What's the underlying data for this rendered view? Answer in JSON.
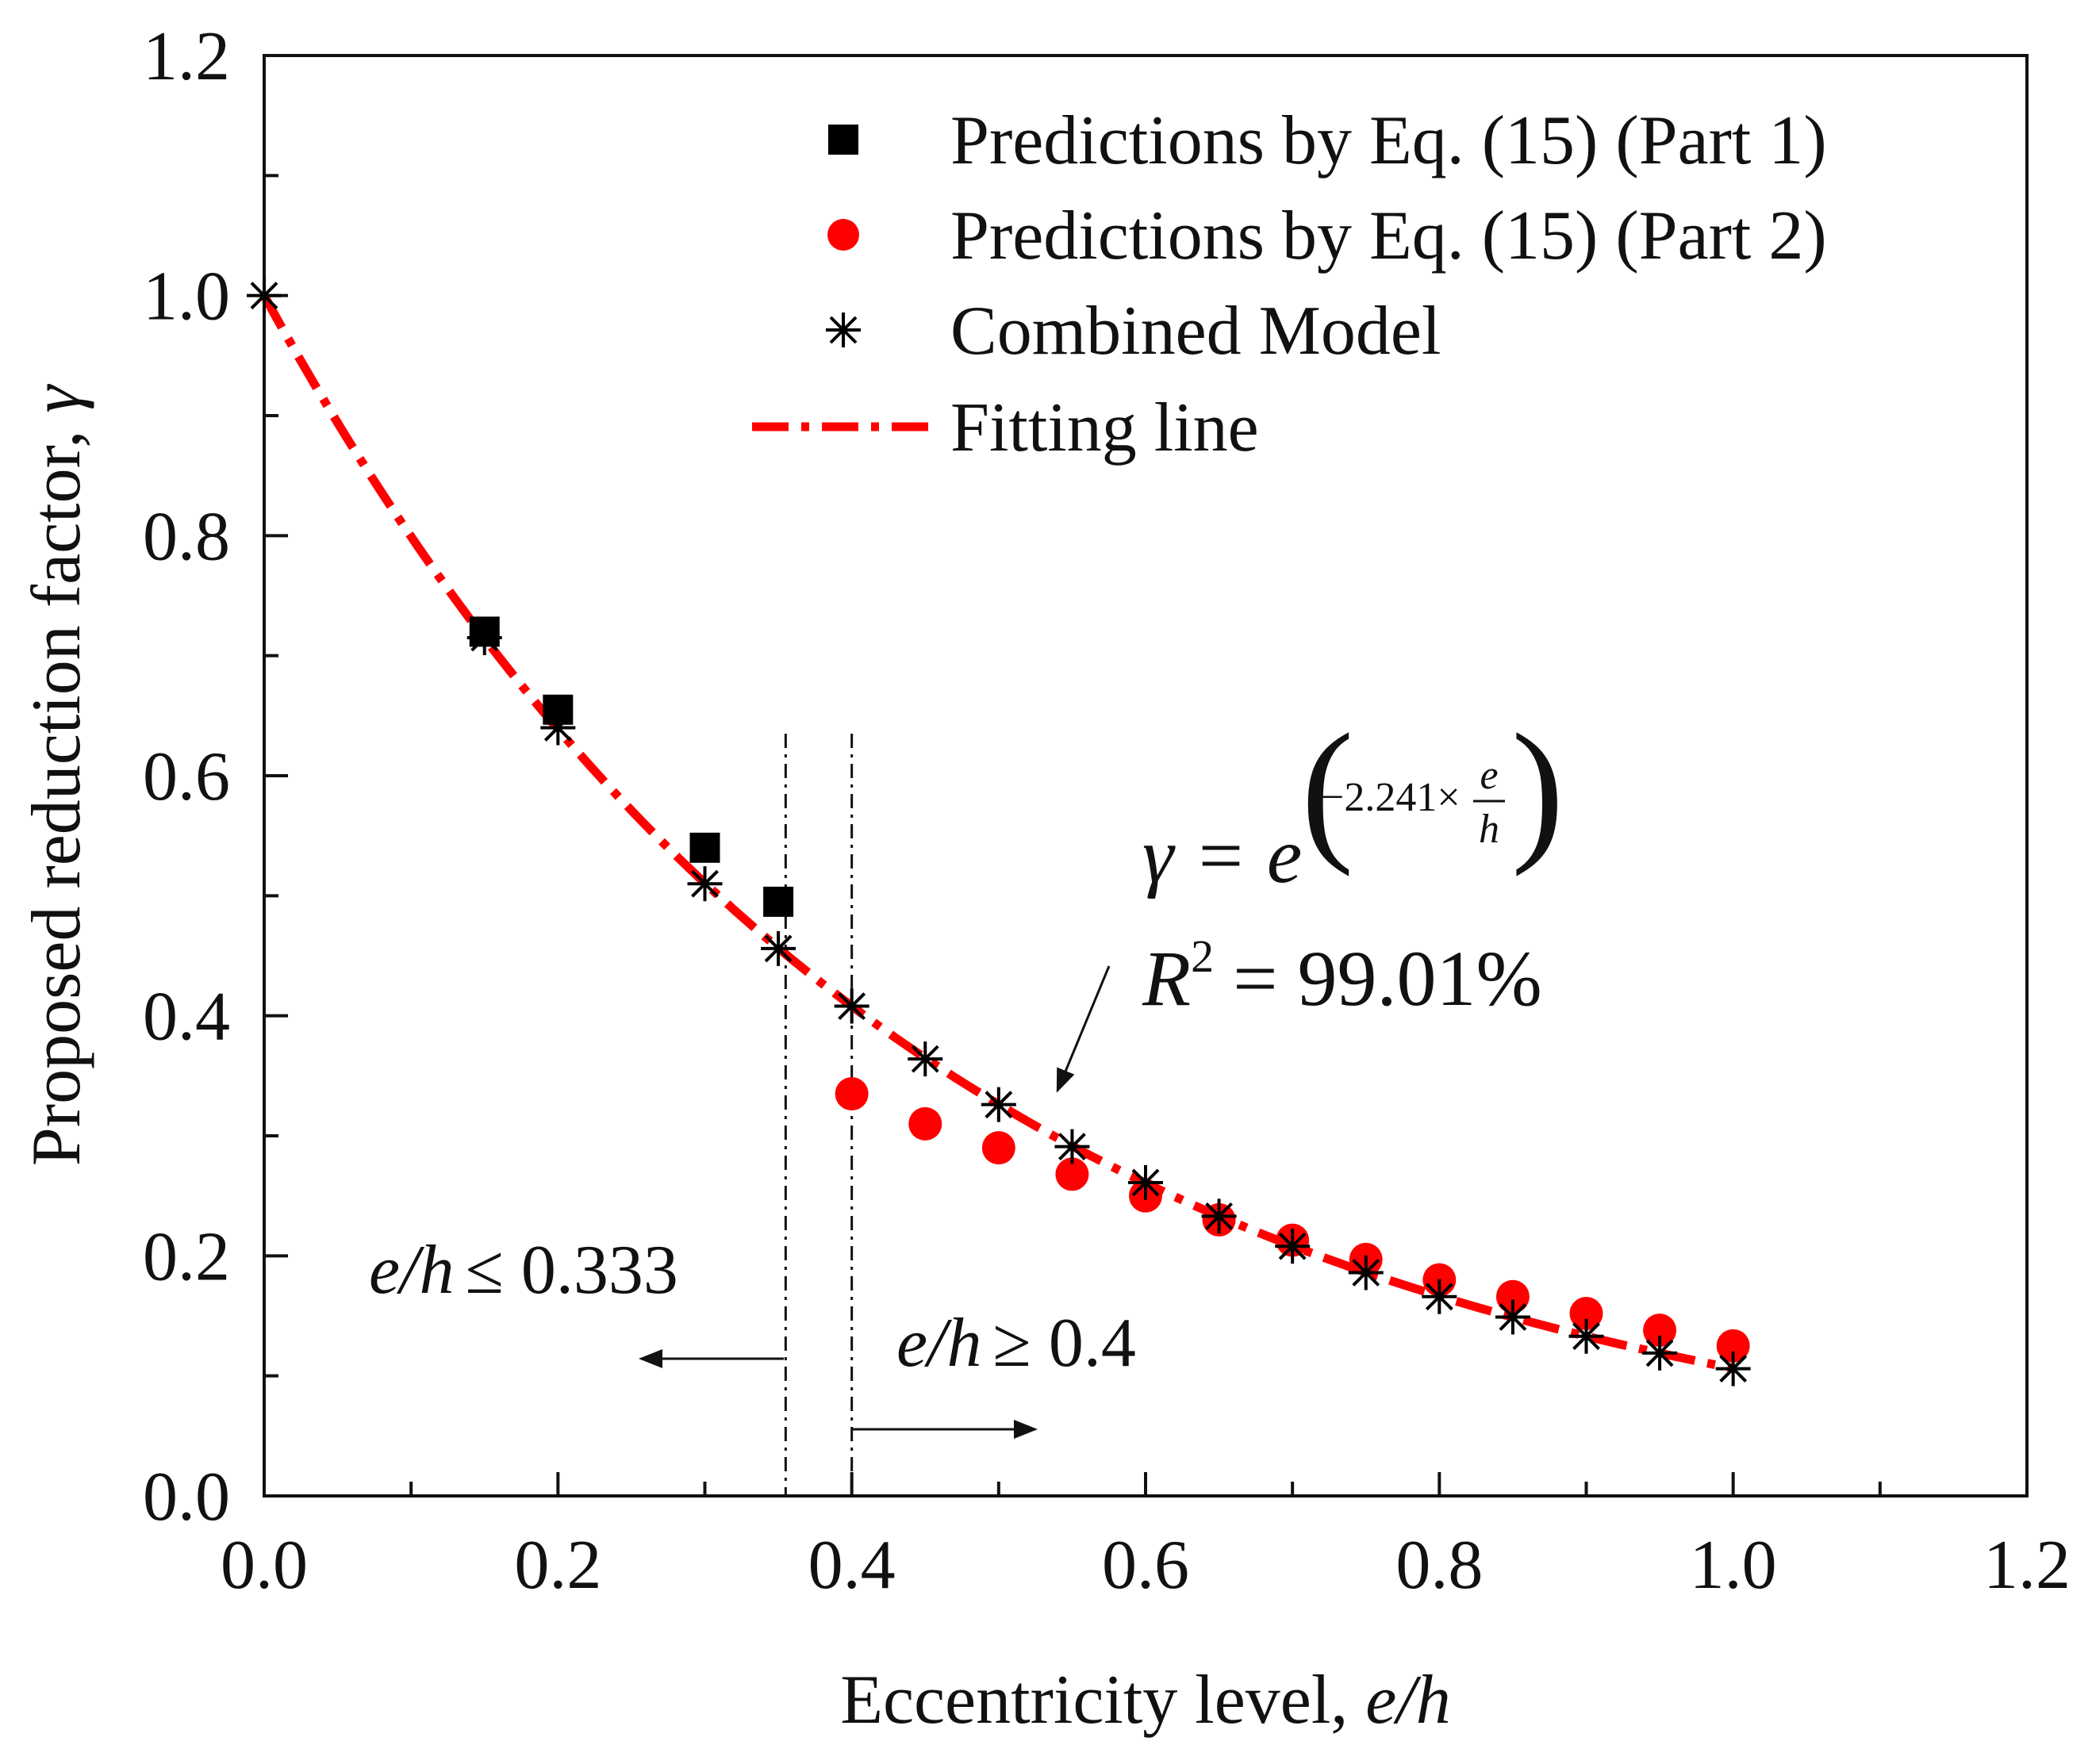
{
  "chart_data": {
    "type": "scatter",
    "xlabel_prefix": "Eccentricity level, ",
    "xlabel_var": "e/h",
    "ylabel_prefix": "Proposed reduction factor, ",
    "ylabel_var": "γ",
    "xlim": [
      0.0,
      1.2
    ],
    "ylim": [
      0.0,
      1.2
    ],
    "x_ticks": [
      "0.0",
      "0.2",
      "0.4",
      "0.6",
      "0.8",
      "1.0",
      "1.2"
    ],
    "y_ticks": [
      "0.0",
      "0.2",
      "0.4",
      "0.6",
      "0.8",
      "1.0",
      "1.2"
    ],
    "series": [
      {
        "name": "Predictions by Eq. (15) (Part 1)",
        "marker": "square",
        "color": "#000000",
        "x": [
          0.15,
          0.2,
          0.3,
          0.35
        ],
        "y": [
          0.72,
          0.655,
          0.54,
          0.495
        ]
      },
      {
        "name": "Predictions by Eq. (15) (Part 2)",
        "marker": "circle",
        "color": "#ff0000",
        "x": [
          0.4,
          0.45,
          0.5,
          0.55,
          0.6,
          0.65,
          0.7,
          0.75,
          0.8,
          0.85,
          0.9,
          0.95,
          1.0
        ],
        "y": [
          0.335,
          0.31,
          0.29,
          0.268,
          0.25,
          0.23,
          0.213,
          0.197,
          0.18,
          0.166,
          0.152,
          0.138,
          0.125
        ]
      },
      {
        "name": "Combined Model",
        "marker": "asterisk",
        "color": "#000000",
        "x": [
          0.0,
          0.15,
          0.2,
          0.3,
          0.35,
          0.4,
          0.45,
          0.5,
          0.55,
          0.6,
          0.65,
          0.7,
          0.75,
          0.8,
          0.85,
          0.9,
          0.95,
          1.0
        ],
        "y": [
          1.0,
          0.715,
          0.64,
          0.51,
          0.456,
          0.408,
          0.364,
          0.326,
          0.291,
          0.261,
          0.233,
          0.208,
          0.186,
          0.166,
          0.149,
          0.133,
          0.119,
          0.106
        ]
      },
      {
        "name": "Fitting line",
        "type": "line",
        "style": "dash-dot",
        "color": "#ff0000",
        "coefficient": -2.241,
        "x_range": [
          0.0,
          1.0
        ]
      }
    ],
    "vertical_lines": [
      0.355,
      0.4
    ],
    "annotations": {
      "equation_lhs": "γ = e",
      "equation_exp_coef": "−2.241×",
      "equation_exp_num": "e",
      "equation_exp_den": "h",
      "r2_lhs": "R",
      "r2_sup": "2",
      "r2_rhs": "= 99.01%",
      "left_region_var": "e/h",
      "left_region_rel": "≤ 0.333",
      "right_region_var": "e/h",
      "right_region_rel": "≥ 0.4"
    },
    "legend_position": "top-right"
  }
}
